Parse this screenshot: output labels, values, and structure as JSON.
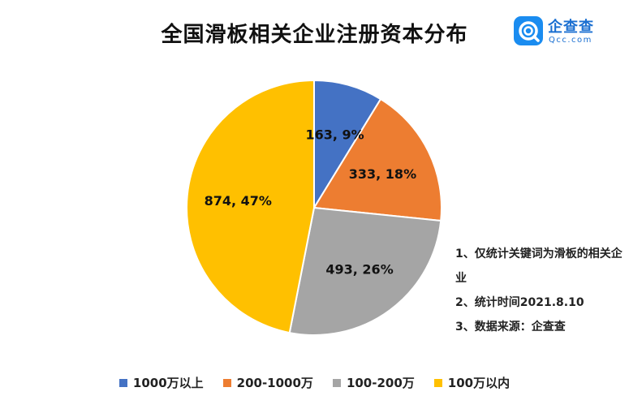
{
  "chart_data": {
    "type": "pie",
    "title": "全国滑板相关企业注册资本分布",
    "slices": [
      {
        "label": "1000万以上",
        "value": 163,
        "percent": "9%",
        "color": "#4472c4"
      },
      {
        "label": "200-1000万",
        "value": 333,
        "percent": "18%",
        "color": "#ed7d31"
      },
      {
        "label": "100-200万",
        "value": 493,
        "percent": "26%",
        "color": "#a5a5a5"
      },
      {
        "label": "100万以内",
        "value": 874,
        "percent": "47%",
        "color": "#ffc000"
      }
    ],
    "legend_position": "bottom"
  },
  "logo": {
    "cn": "企查查",
    "en": "Qcc.com"
  },
  "notes": [
    "1、仅统计关键词为滑板的相关企业",
    "2、统计时间2021.8.10",
    "3、数据来源：企查查"
  ]
}
